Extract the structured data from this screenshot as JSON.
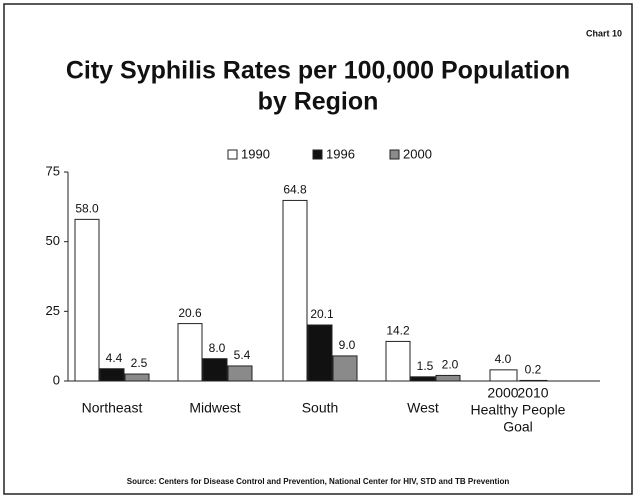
{
  "chart_data": {
    "type": "bar",
    "corner_label": "Chart 10",
    "title": "City Syphilis Rates per 100,000 Population",
    "title_line2": "by Region",
    "categories": [
      "Northeast",
      "Midwest",
      "South",
      "West"
    ],
    "series": [
      {
        "name": "1990",
        "color": "#ffffff",
        "values": [
          58.0,
          20.6,
          64.8,
          14.2
        ],
        "value_labels": [
          "58.0",
          "20.6",
          "64.8",
          "14.2"
        ]
      },
      {
        "name": "1996",
        "color": "#111111",
        "values": [
          4.4,
          8.0,
          20.1,
          1.5
        ],
        "value_labels": [
          "4.4",
          "8.0",
          "20.1",
          "1.5"
        ]
      },
      {
        "name": "2000",
        "color": "#8a8a8a",
        "values": [
          2.5,
          5.4,
          9.0,
          2.0
        ],
        "value_labels": [
          "2.5",
          "5.4",
          "9.0",
          "2.0"
        ]
      }
    ],
    "goal": {
      "label": "Healthy People",
      "label_line2": "Goal",
      "categories": [
        "2000",
        "2010"
      ],
      "values": [
        4.0,
        0.2
      ],
      "value_labels": [
        "4.0",
        "0.2"
      ],
      "color": "#ffffff"
    },
    "ylim": [
      0,
      75
    ],
    "yticks": [
      0,
      25,
      50,
      75
    ],
    "legend": "top",
    "source": "Source: Centers for Disease Control and Prevention, National Center for HIV, STD and TB Prevention"
  }
}
